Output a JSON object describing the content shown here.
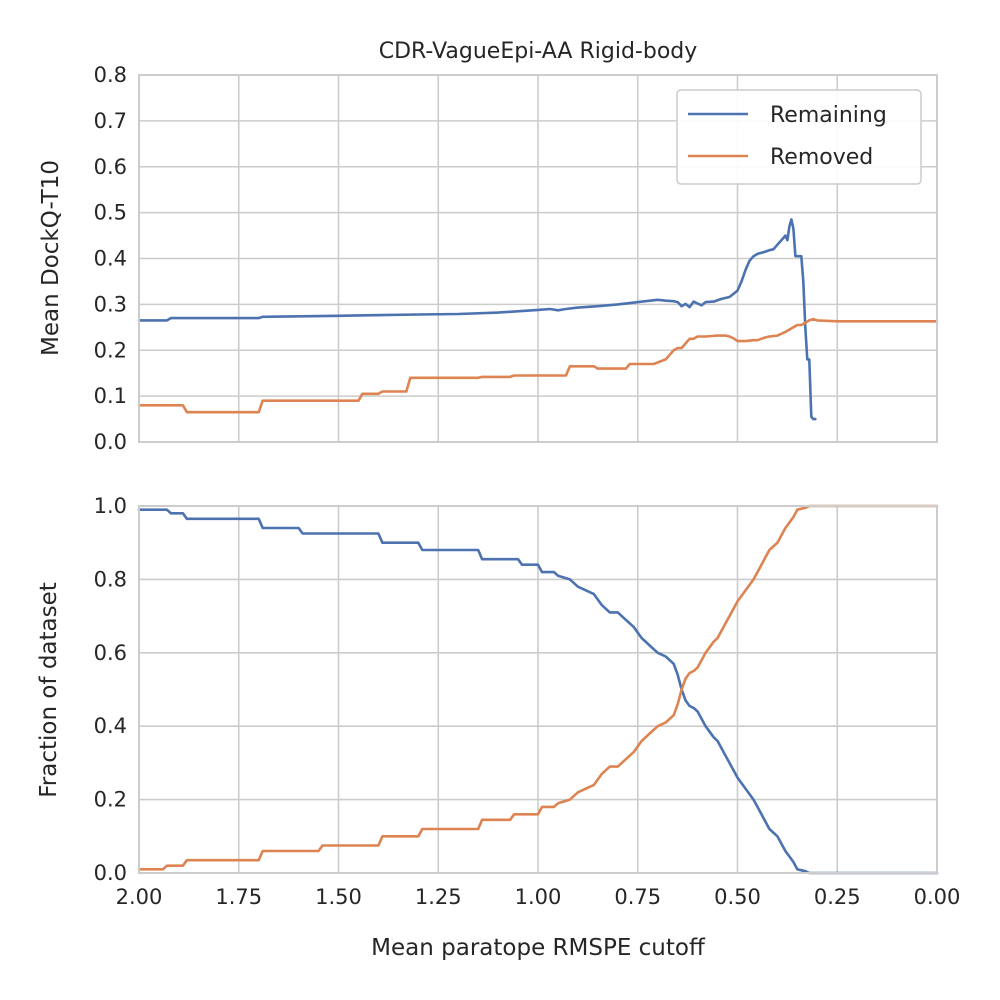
{
  "chart_data": [
    {
      "type": "line",
      "title": "CDR-VagueEpi-AA Rigid-body",
      "xlabel": "",
      "ylabel": "Mean DockQ-T10",
      "xlim": [
        2.0,
        0.0
      ],
      "ylim": [
        0.0,
        0.8
      ],
      "x_inverted": true,
      "xticks": [
        "2.00",
        "1.75",
        "1.50",
        "1.25",
        "1.00",
        "0.75",
        "0.50",
        "0.25",
        "0.00"
      ],
      "yticks": [
        "0.0",
        "0.1",
        "0.2",
        "0.3",
        "0.4",
        "0.5",
        "0.6",
        "0.7",
        "0.8"
      ],
      "xtick_labels_visible": false,
      "grid": true,
      "legend": {
        "position": "top-right",
        "entries": [
          "Remaining",
          "Removed"
        ]
      },
      "series": [
        {
          "name": "Remaining",
          "color": "#4c72b0",
          "x": [
            2.0,
            1.93,
            1.92,
            1.7,
            1.69,
            1.5,
            1.45,
            1.3,
            1.2,
            1.1,
            1.0,
            0.97,
            0.95,
            0.93,
            0.9,
            0.85,
            0.8,
            0.75,
            0.7,
            0.68,
            0.66,
            0.65,
            0.64,
            0.63,
            0.62,
            0.61,
            0.6,
            0.59,
            0.58,
            0.56,
            0.54,
            0.52,
            0.5,
            0.49,
            0.48,
            0.47,
            0.46,
            0.45,
            0.43,
            0.42,
            0.41,
            0.4,
            0.39,
            0.38,
            0.375,
            0.37,
            0.365,
            0.36,
            0.355,
            0.35,
            0.345,
            0.34,
            0.335,
            0.33,
            0.325,
            0.32,
            0.315,
            0.31,
            0.305
          ],
          "y": [
            0.265,
            0.265,
            0.27,
            0.27,
            0.273,
            0.275,
            0.276,
            0.278,
            0.279,
            0.282,
            0.288,
            0.29,
            0.287,
            0.29,
            0.293,
            0.296,
            0.3,
            0.305,
            0.31,
            0.308,
            0.307,
            0.305,
            0.296,
            0.301,
            0.294,
            0.306,
            0.302,
            0.298,
            0.305,
            0.306,
            0.312,
            0.316,
            0.33,
            0.35,
            0.375,
            0.395,
            0.405,
            0.41,
            0.415,
            0.418,
            0.42,
            0.43,
            0.44,
            0.45,
            0.44,
            0.47,
            0.485,
            0.465,
            0.405,
            0.405,
            0.405,
            0.405,
            0.35,
            0.25,
            0.18,
            0.18,
            0.055,
            0.05,
            0.05
          ]
        },
        {
          "name": "Removed",
          "color": "#dd8452",
          "x": [
            2.0,
            1.89,
            1.88,
            1.7,
            1.69,
            1.45,
            1.44,
            1.4,
            1.39,
            1.33,
            1.32,
            1.15,
            1.14,
            1.07,
            1.06,
            0.93,
            0.92,
            0.86,
            0.85,
            0.78,
            0.77,
            0.72,
            0.71,
            0.68,
            0.67,
            0.66,
            0.65,
            0.64,
            0.63,
            0.62,
            0.61,
            0.6,
            0.58,
            0.55,
            0.53,
            0.52,
            0.51,
            0.5,
            0.48,
            0.46,
            0.45,
            0.43,
            0.42,
            0.4,
            0.38,
            0.37,
            0.36,
            0.35,
            0.34,
            0.33,
            0.32,
            0.31,
            0.3,
            0.25,
            0.0
          ],
          "y": [
            0.08,
            0.08,
            0.065,
            0.065,
            0.09,
            0.09,
            0.105,
            0.105,
            0.11,
            0.11,
            0.14,
            0.14,
            0.142,
            0.142,
            0.145,
            0.145,
            0.165,
            0.165,
            0.16,
            0.16,
            0.17,
            0.17,
            0.17,
            0.18,
            0.19,
            0.2,
            0.205,
            0.205,
            0.215,
            0.225,
            0.225,
            0.23,
            0.23,
            0.232,
            0.232,
            0.23,
            0.226,
            0.22,
            0.22,
            0.222,
            0.222,
            0.228,
            0.23,
            0.232,
            0.24,
            0.245,
            0.25,
            0.255,
            0.255,
            0.26,
            0.265,
            0.268,
            0.265,
            0.263,
            0.263
          ]
        }
      ]
    },
    {
      "type": "line",
      "title": "",
      "xlabel": "Mean paratope RMSPE cutoff",
      "ylabel": "Fraction of dataset",
      "xlim": [
        2.0,
        0.0
      ],
      "ylim": [
        0.0,
        1.0
      ],
      "x_inverted": true,
      "xticks": [
        "2.00",
        "1.75",
        "1.50",
        "1.25",
        "1.00",
        "0.75",
        "0.50",
        "0.25",
        "0.00"
      ],
      "yticks": [
        "0.0",
        "0.2",
        "0.4",
        "0.6",
        "0.8",
        "1.0"
      ],
      "xtick_labels_visible": true,
      "grid": true,
      "series": [
        {
          "name": "Remaining",
          "color": "#4c72b0",
          "x": [
            2.0,
            1.93,
            1.92,
            1.89,
            1.88,
            1.7,
            1.69,
            1.6,
            1.59,
            1.4,
            1.39,
            1.3,
            1.29,
            1.15,
            1.14,
            1.05,
            1.04,
            1.0,
            0.99,
            0.96,
            0.95,
            0.92,
            0.9,
            0.86,
            0.84,
            0.82,
            0.8,
            0.78,
            0.76,
            0.74,
            0.72,
            0.7,
            0.68,
            0.66,
            0.65,
            0.64,
            0.63,
            0.62,
            0.61,
            0.6,
            0.59,
            0.58,
            0.56,
            0.55,
            0.53,
            0.52,
            0.5,
            0.48,
            0.46,
            0.45,
            0.43,
            0.42,
            0.4,
            0.39,
            0.38,
            0.36,
            0.35,
            0.33,
            0.32,
            0.31,
            0.3,
            0.0
          ],
          "y": [
            0.99,
            0.99,
            0.98,
            0.98,
            0.965,
            0.965,
            0.94,
            0.94,
            0.925,
            0.925,
            0.9,
            0.9,
            0.88,
            0.88,
            0.855,
            0.855,
            0.84,
            0.84,
            0.82,
            0.82,
            0.81,
            0.8,
            0.78,
            0.76,
            0.73,
            0.71,
            0.71,
            0.69,
            0.67,
            0.64,
            0.62,
            0.6,
            0.59,
            0.57,
            0.54,
            0.5,
            0.47,
            0.455,
            0.45,
            0.44,
            0.42,
            0.4,
            0.37,
            0.36,
            0.32,
            0.3,
            0.26,
            0.23,
            0.2,
            0.18,
            0.14,
            0.12,
            0.1,
            0.08,
            0.06,
            0.03,
            0.01,
            0.005,
            0.0,
            0.0,
            0.0,
            0.0
          ]
        },
        {
          "name": "Removed",
          "color": "#dd8452",
          "x": [
            2.0,
            1.94,
            1.93,
            1.89,
            1.88,
            1.7,
            1.69,
            1.55,
            1.54,
            1.4,
            1.39,
            1.3,
            1.29,
            1.15,
            1.14,
            1.07,
            1.06,
            1.0,
            0.99,
            0.96,
            0.95,
            0.92,
            0.9,
            0.86,
            0.84,
            0.82,
            0.8,
            0.78,
            0.76,
            0.74,
            0.72,
            0.7,
            0.68,
            0.66,
            0.65,
            0.64,
            0.63,
            0.62,
            0.61,
            0.6,
            0.59,
            0.58,
            0.56,
            0.55,
            0.53,
            0.52,
            0.5,
            0.48,
            0.46,
            0.45,
            0.43,
            0.42,
            0.4,
            0.39,
            0.38,
            0.36,
            0.35,
            0.33,
            0.32,
            0.31,
            0.3,
            0.0
          ],
          "y": [
            0.01,
            0.01,
            0.02,
            0.02,
            0.035,
            0.035,
            0.06,
            0.06,
            0.075,
            0.075,
            0.1,
            0.1,
            0.12,
            0.12,
            0.145,
            0.145,
            0.16,
            0.16,
            0.18,
            0.18,
            0.19,
            0.2,
            0.22,
            0.24,
            0.27,
            0.29,
            0.29,
            0.31,
            0.33,
            0.36,
            0.38,
            0.4,
            0.41,
            0.43,
            0.46,
            0.5,
            0.53,
            0.545,
            0.55,
            0.56,
            0.58,
            0.6,
            0.63,
            0.64,
            0.68,
            0.7,
            0.74,
            0.77,
            0.8,
            0.82,
            0.86,
            0.88,
            0.9,
            0.92,
            0.94,
            0.97,
            0.99,
            0.995,
            1.0,
            1.0,
            1.0,
            1.0
          ]
        }
      ]
    }
  ]
}
